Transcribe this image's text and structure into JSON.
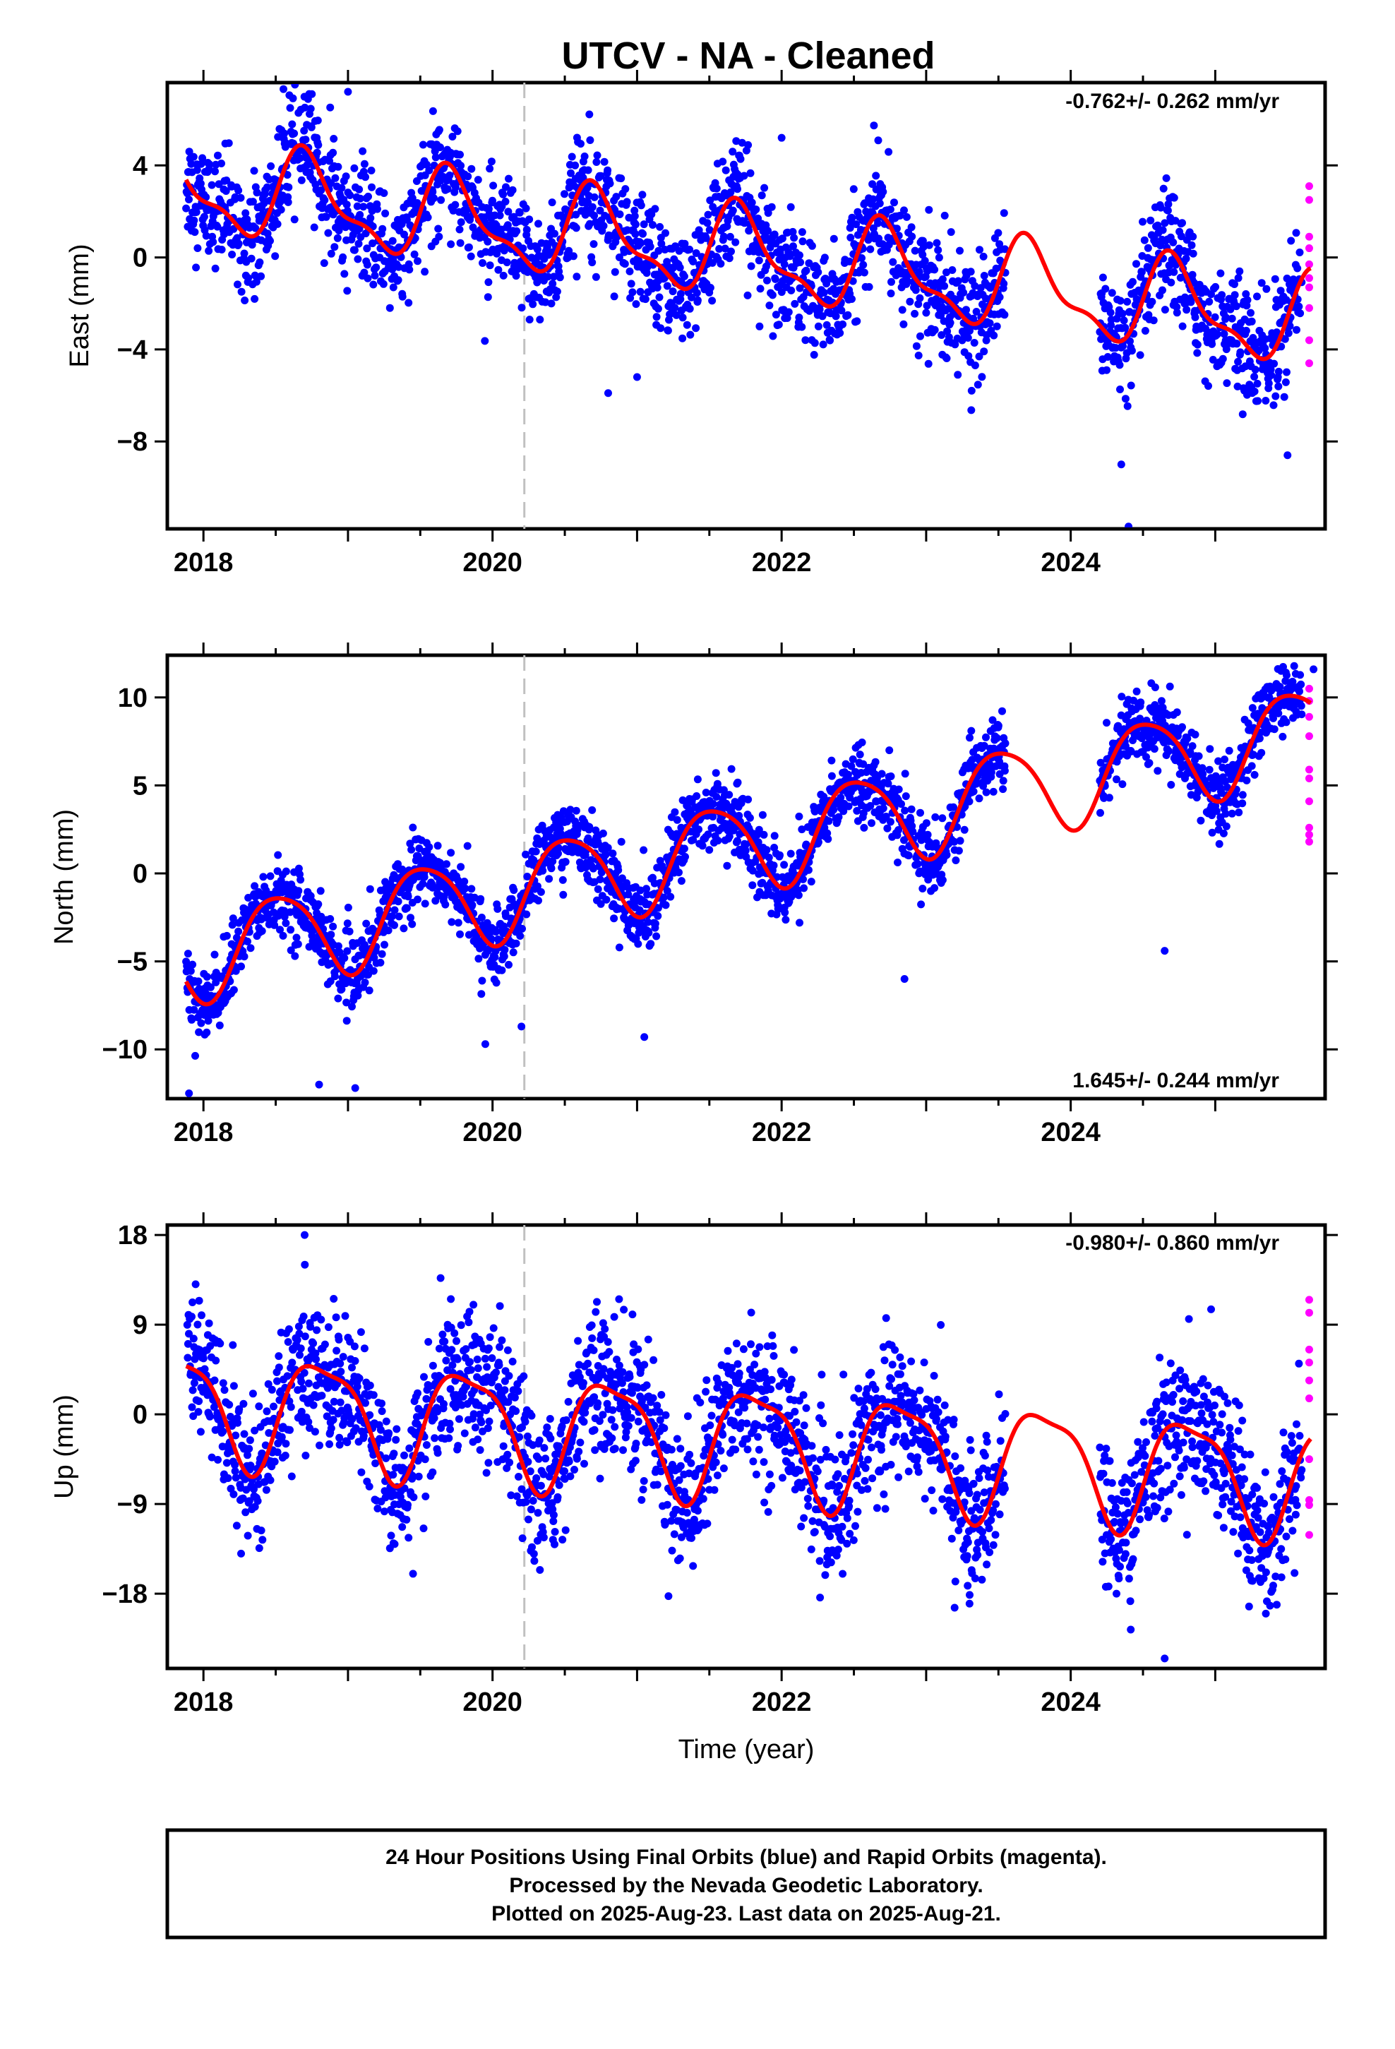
{
  "title": "UTCV  - NA - Cleaned",
  "colors": {
    "final": "#0000ff",
    "rapid": "#ff00ff",
    "model": "#ff0000",
    "event": "#c0c0c0"
  },
  "chart_data": [
    {
      "type": "scatter",
      "ylabel": "East (mm)",
      "rate_label": "-0.762+/- 0.262 mm/yr",
      "xlim": [
        2017.75,
        2025.76
      ],
      "ylim": [
        -11.8,
        7.6
      ],
      "yticks": [
        4,
        0,
        -4,
        -8
      ],
      "ytick_labels": [
        "4",
        "0",
        "−4",
        "−8"
      ],
      "xticks": [
        2018,
        2020,
        2022,
        2024
      ],
      "xtick_labels": [
        "2018",
        "2020",
        "2022",
        "2024"
      ],
      "event_line": 2020.22,
      "gaps": [
        [
          2023.55,
          2024.2
        ]
      ],
      "series": [
        {
          "name": "Final Orbits",
          "color": "#0000ff",
          "model": {
            "offset": 3.0,
            "trend": -0.762,
            "annual_amp": 1.8,
            "annual_peak": 0.72,
            "semi_amp": 0.7,
            "semi_peak": 0.15,
            "noise": 1.2
          },
          "outliers": [
            [
              2018.75,
              7.1
            ],
            [
              2019.0,
              7.2
            ],
            [
              2020.8,
              -5.9
            ],
            [
              2021.0,
              -5.2
            ],
            [
              2022.0,
              5.2
            ],
            [
              2024.35,
              -9.0
            ],
            [
              2024.4,
              -11.7
            ],
            [
              2025.5,
              -8.6
            ]
          ]
        },
        {
          "name": "Rapid Orbits",
          "color": "#ff00ff",
          "points": [
            [
              2025.65,
              3.1
            ],
            [
              2025.65,
              2.5
            ],
            [
              2025.65,
              0.9
            ],
            [
              2025.65,
              0.4
            ],
            [
              2025.65,
              -0.3
            ],
            [
              2025.65,
              -0.9
            ],
            [
              2025.65,
              -1.3
            ],
            [
              2025.65,
              -2.2
            ],
            [
              2025.65,
              -3.6
            ],
            [
              2025.65,
              -4.6
            ]
          ]
        }
      ]
    },
    {
      "type": "scatter",
      "ylabel": "North (mm)",
      "rate_label": "1.645+/- 0.244 mm/yr",
      "xlim": [
        2017.75,
        2025.76
      ],
      "ylim": [
        -12.8,
        12.4
      ],
      "yticks": [
        10,
        5,
        0,
        -5,
        -10
      ],
      "ytick_labels": [
        "10",
        "5",
        "0",
        "−5",
        "−10"
      ],
      "xticks": [
        2018,
        2020,
        2022,
        2024
      ],
      "xtick_labels": [
        "2018",
        "2020",
        "2022",
        "2024"
      ],
      "event_line": 2020.22,
      "gaps": [
        [
          2023.55,
          2024.2
        ]
      ],
      "series": [
        {
          "name": "Final Orbits",
          "color": "#0000ff",
          "model": {
            "offset": -4.5,
            "trend": 1.645,
            "annual_amp": 2.6,
            "annual_peak": 0.52,
            "semi_amp": 0.4,
            "semi_peak": 0.3,
            "noise": 1.0
          },
          "outliers": [
            [
              2017.9,
              -12.5
            ],
            [
              2018.8,
              -12.0
            ],
            [
              2019.05,
              -12.2
            ],
            [
              2019.95,
              -9.7
            ],
            [
              2020.2,
              -8.7
            ],
            [
              2021.05,
              -9.3
            ],
            [
              2022.85,
              -6.0
            ],
            [
              2024.65,
              -4.4
            ],
            [
              2025.68,
              11.6
            ]
          ]
        },
        {
          "name": "Rapid Orbits",
          "color": "#ff00ff",
          "points": [
            [
              2025.65,
              10.5
            ],
            [
              2025.65,
              9.8
            ],
            [
              2025.65,
              8.9
            ],
            [
              2025.65,
              7.8
            ],
            [
              2025.65,
              5.9
            ],
            [
              2025.65,
              5.4
            ],
            [
              2025.65,
              4.1
            ],
            [
              2025.65,
              2.6
            ],
            [
              2025.65,
              2.2
            ],
            [
              2025.65,
              1.8
            ]
          ]
        }
      ]
    },
    {
      "type": "scatter",
      "ylabel": "Up (mm)",
      "xlabel": "Time (year)",
      "rate_label": "-0.980+/- 0.860 mm/yr",
      "xlim": [
        2017.75,
        2025.76
      ],
      "ylim": [
        -25.5,
        19.0
      ],
      "yticks": [
        18,
        9,
        0,
        -9,
        -18
      ],
      "ytick_labels": [
        "18",
        "9",
        "0",
        "−9",
        "−18"
      ],
      "xticks": [
        2018,
        2020,
        2022,
        2024
      ],
      "xtick_labels": [
        "2018",
        "2020",
        "2022",
        "2024"
      ],
      "event_line": 2020.22,
      "gaps": [
        [
          2023.55,
          2024.2
        ]
      ],
      "series": [
        {
          "name": "Final Orbits",
          "color": "#0000ff",
          "model": {
            "offset": 1.0,
            "trend": -0.98,
            "annual_amp": 5.5,
            "annual_peak": 0.82,
            "semi_amp": 1.5,
            "semi_peak": 0.1,
            "noise": 3.5
          },
          "outliers": [
            [
              2018.7,
              18.0
            ],
            [
              2019.45,
              -16.0
            ],
            [
              2023.3,
              -19.0
            ],
            [
              2024.65,
              -24.5
            ],
            [
              2025.35,
              -20.0
            ]
          ]
        },
        {
          "name": "Rapid Orbits",
          "color": "#ff00ff",
          "points": [
            [
              2025.65,
              11.5
            ],
            [
              2025.65,
              10.2
            ],
            [
              2025.65,
              6.5
            ],
            [
              2025.65,
              5.2
            ],
            [
              2025.65,
              3.4
            ],
            [
              2025.65,
              1.6
            ],
            [
              2025.65,
              -4.5
            ],
            [
              2025.65,
              -8.6
            ],
            [
              2025.65,
              -9.1
            ],
            [
              2025.65,
              -12.1
            ]
          ]
        }
      ]
    }
  ],
  "footer": {
    "line1": "24 Hour Positions Using Final Orbits (blue) and Rapid Orbits (magenta).",
    "line2": "Processed by the Nevada Geodetic Laboratory.",
    "line3": "Plotted on 2025-Aug-23. Last data on 2025-Aug-21."
  }
}
